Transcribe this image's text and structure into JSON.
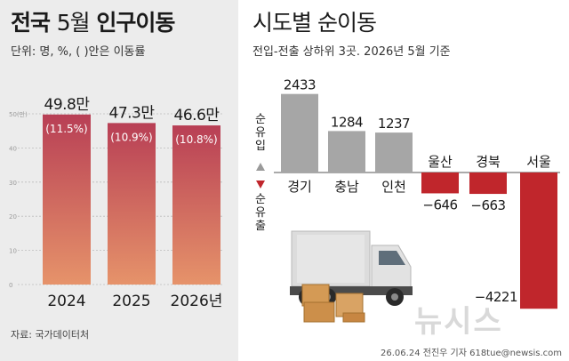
{
  "left": {
    "title_bold": "전국",
    "title_light": "5월",
    "title_bold2": "인구이동",
    "unit": "단위: 명, %, ( )안은 이동률",
    "source": "자료: 국가데이터처"
  },
  "right": {
    "title": "시도별 순이동",
    "subtitle": "전입-전출 상하위 3곳. 2026년 5월 기준",
    "inflow_label": "순유입",
    "outflow_label": "순유출",
    "credit": "26.06.24 전진우 기자 618tue@newsis.com",
    "logo": "뉴시스"
  },
  "chart_data": [
    {
      "type": "bar",
      "categories": [
        "2024",
        "2025",
        "2026년"
      ],
      "values": [
        49.8,
        47.3,
        46.6
      ],
      "value_labels": [
        "49.8만",
        "47.3만",
        "46.6만"
      ],
      "rates": [
        "(11.5%)",
        "(10.9%)",
        "(10.8%)"
      ],
      "ylim": [
        0,
        50
      ],
      "yticks": [
        "0",
        "10",
        "20",
        "30",
        "40",
        "50(만)"
      ],
      "colors": {
        "top": "#b83f55",
        "bottom": "#e6936a"
      }
    },
    {
      "type": "bar",
      "categories": [
        "경기",
        "충남",
        "인천",
        "울산",
        "경북",
        "서울"
      ],
      "values": [
        2433,
        1284,
        1237,
        -646,
        -663,
        -4221
      ],
      "value_labels": [
        "2433",
        "1284",
        "1237",
        "−646",
        "−663",
        "−4221"
      ],
      "colors": {
        "positive": "#a6a6a6",
        "negative": "#c0262c"
      }
    }
  ]
}
